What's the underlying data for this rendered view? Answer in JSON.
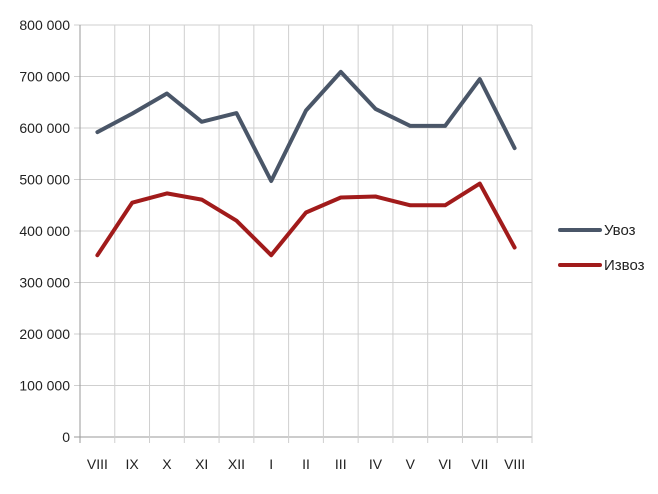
{
  "chart_data": {
    "type": "line",
    "categories": [
      "VIII",
      "IX",
      "X",
      "XI",
      "XII",
      "I",
      "II",
      "III",
      "IV",
      "V",
      "VI",
      "VII",
      "VIII"
    ],
    "series": [
      {
        "name": "Увоз",
        "color": "#4a5668",
        "values": [
          592000,
          628000,
          667000,
          612000,
          629000,
          497000,
          634000,
          709000,
          637000,
          604000,
          604000,
          695000,
          561000
        ]
      },
      {
        "name": "Извоз",
        "color": "#a11b1b",
        "values": [
          353000,
          455000,
          473000,
          461000,
          420000,
          353000,
          436000,
          465000,
          467000,
          450000,
          450000,
          492000,
          368000
        ]
      }
    ],
    "yticks": [
      "0",
      "100 000",
      "200 000",
      "300 000",
      "400 000",
      "500 000",
      "600 000",
      "700 000",
      "800 000"
    ],
    "ylim": [
      0,
      800000
    ],
    "grid": true,
    "legend_position": "right"
  }
}
